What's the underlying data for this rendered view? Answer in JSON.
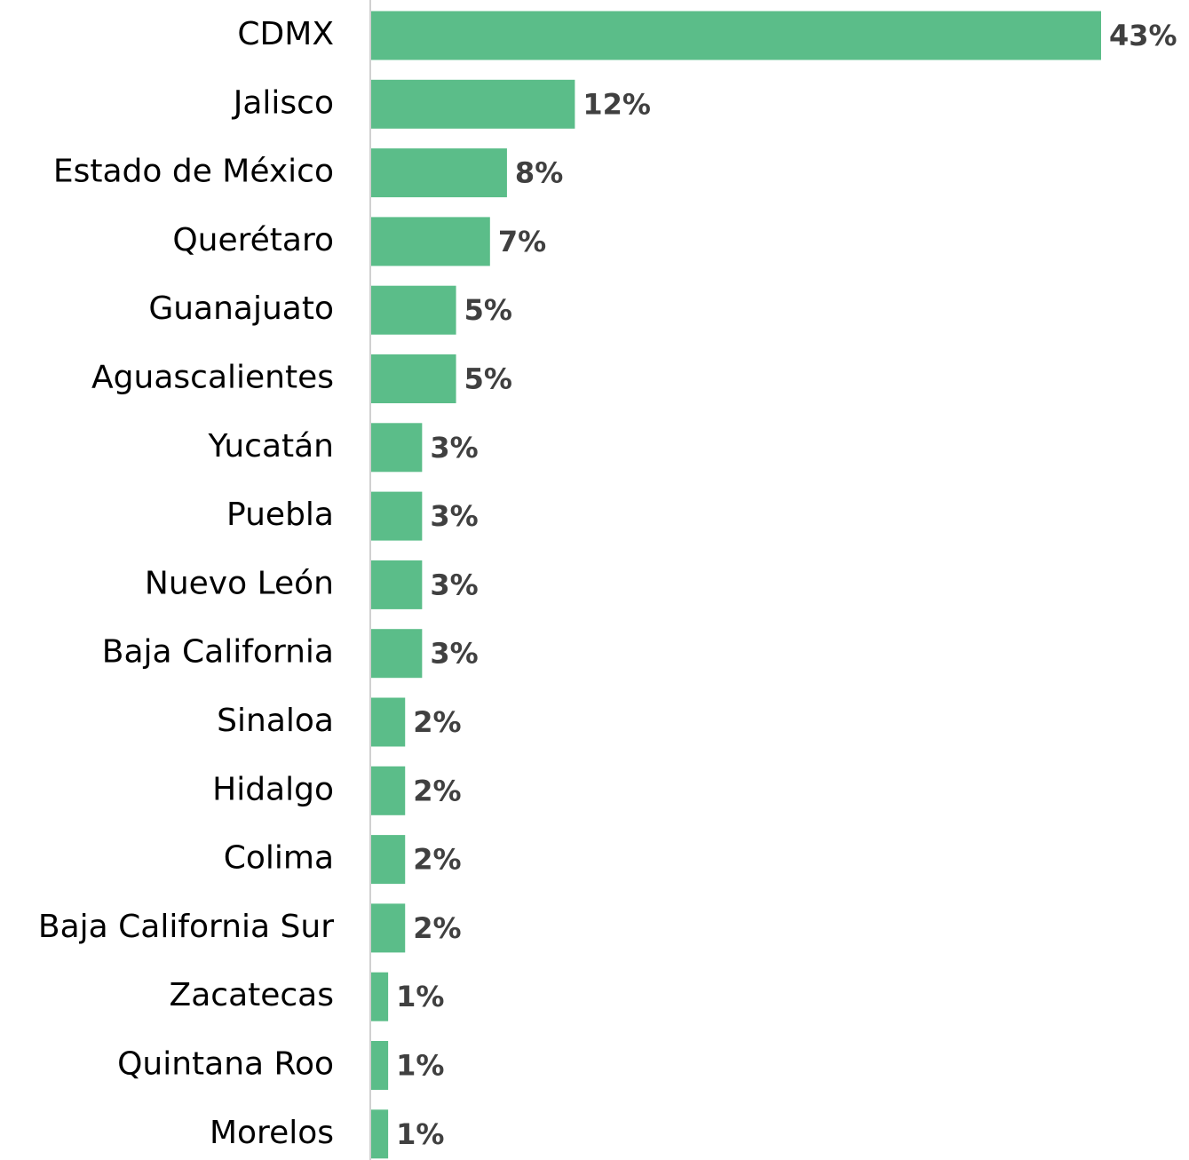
{
  "chart_data": {
    "type": "bar",
    "orientation": "horizontal",
    "color": "#5bbd89",
    "categories": [
      "CDMX",
      "Jalisco",
      "Estado de México",
      "Querétaro",
      "Guanajuato",
      "Aguascalientes",
      "Yucatán",
      "Puebla",
      "Nuevo León",
      "Baja California",
      "Sinaloa",
      "Hidalgo",
      "Colima",
      "Baja California Sur",
      "Zacatecas",
      "Quintana Roo",
      "Morelos"
    ],
    "values": [
      43,
      12,
      8,
      7,
      5,
      5,
      3,
      3,
      3,
      3,
      2,
      2,
      2,
      2,
      1,
      1,
      1
    ],
    "value_labels": [
      "43%",
      "12%",
      "8%",
      "7%",
      "5%",
      "5%",
      "3%",
      "3%",
      "3%",
      "3%",
      "2%",
      "2%",
      "2%",
      "2%",
      "1%",
      "1%",
      "1%"
    ]
  }
}
